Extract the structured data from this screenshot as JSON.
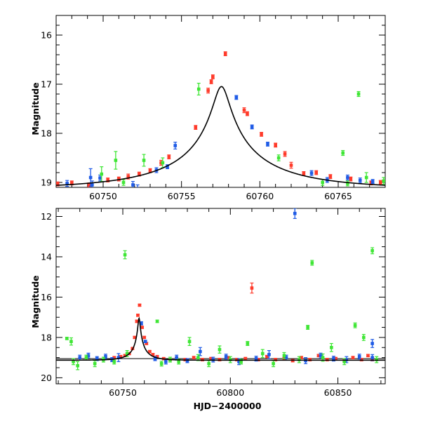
{
  "chart_data": [
    {
      "type": "scatter",
      "panel": "top",
      "title": "",
      "xlabel": "",
      "ylabel": "Magnitude",
      "xlim": [
        60747,
        60768
      ],
      "ylim": [
        19.1,
        15.6
      ],
      "y_inverted": true,
      "xticks": [
        60750,
        60755,
        60760,
        60765
      ],
      "yticks": [
        16,
        17,
        18,
        19
      ],
      "grid": false,
      "legend": "none",
      "model": {
        "name": "",
        "t0": 60757.55,
        "u0": 0.06,
        "tE": 8.0,
        "fs": 0.37,
        "base_mag": 19.13,
        "color": "#000000"
      },
      "series": [
        {
          "color": "#ff3a2a",
          "points": [
            [
              60747.1,
              19.03,
              0.04
            ],
            [
              60748.0,
              19.01,
              0.04
            ],
            [
              60749.1,
              19.05,
              0.04
            ],
            [
              60750.3,
              18.95,
              0.04
            ],
            [
              60751.0,
              18.93,
              0.04
            ],
            [
              60751.6,
              18.88,
              0.05
            ],
            [
              60752.3,
              18.83,
              0.04
            ],
            [
              60753.0,
              18.76,
              0.04
            ],
            [
              60753.7,
              18.6,
              0.05
            ],
            [
              60754.2,
              18.48,
              0.04
            ],
            [
              60755.9,
              17.88,
              0.04
            ],
            [
              60756.7,
              17.13,
              0.05
            ],
            [
              60756.9,
              16.95,
              0.04
            ],
            [
              60757.0,
              16.85,
              0.04
            ],
            [
              60757.8,
              16.38,
              0.04
            ],
            [
              60759.0,
              17.53,
              0.05
            ],
            [
              60759.2,
              17.6,
              0.04
            ],
            [
              60760.1,
              18.02,
              0.04
            ],
            [
              60761.0,
              18.24,
              0.04
            ],
            [
              60761.6,
              18.42,
              0.05
            ],
            [
              60762.0,
              18.65,
              0.06
            ],
            [
              60762.8,
              18.82,
              0.04
            ],
            [
              60763.6,
              18.8,
              0.04
            ],
            [
              60764.5,
              18.88,
              0.04
            ],
            [
              60765.8,
              18.93,
              0.04
            ],
            [
              60767.1,
              19.01,
              0.04
            ],
            [
              60767.7,
              19.0,
              0.04
            ]
          ]
        },
        {
          "color": "#1f5be6",
          "points": [
            [
              60747.7,
              19.02,
              0.06
            ],
            [
              60749.2,
              18.9,
              0.18
            ],
            [
              60749.3,
              19.05,
              0.08
            ],
            [
              60749.8,
              18.91,
              0.06
            ],
            [
              60751.9,
              19.05,
              0.07
            ],
            [
              60752.2,
              19.13,
              0.08
            ],
            [
              60753.4,
              18.75,
              0.05
            ],
            [
              60754.1,
              18.68,
              0.04
            ],
            [
              60754.6,
              18.25,
              0.07
            ],
            [
              60758.5,
              17.27,
              0.04
            ],
            [
              60759.5,
              17.87,
              0.04
            ],
            [
              60760.5,
              18.22,
              0.04
            ],
            [
              60763.3,
              18.81,
              0.05
            ],
            [
              60764.3,
              18.95,
              0.05
            ],
            [
              60765.1,
              19.18,
              0.07
            ],
            [
              60765.6,
              18.9,
              0.05
            ],
            [
              60766.4,
              18.96,
              0.05
            ],
            [
              60767.2,
              18.98,
              0.04
            ]
          ]
        },
        {
          "color": "#3fe635",
          "points": [
            [
              60749.9,
              18.83,
              0.15
            ],
            [
              60750.8,
              18.55,
              0.18
            ],
            [
              60751.3,
              19.0,
              0.06
            ],
            [
              60752.6,
              18.55,
              0.12
            ],
            [
              60753.8,
              18.6,
              0.1
            ],
            [
              60756.1,
              17.1,
              0.12
            ],
            [
              60761.2,
              18.5,
              0.06
            ],
            [
              60764.0,
              19.0,
              0.06
            ],
            [
              60765.3,
              18.4,
              0.05
            ],
            [
              60765.6,
              19.02,
              0.05
            ],
            [
              60766.3,
              17.2,
              0.05
            ],
            [
              60766.8,
              18.9,
              0.1
            ],
            [
              60767.9,
              18.97,
              0.07
            ]
          ]
        }
      ]
    },
    {
      "type": "scatter",
      "panel": "bottom",
      "title": "",
      "xlabel": "HJD−2400000",
      "ylabel": "Magnitude",
      "xlim": [
        60719,
        60872
      ],
      "ylim": [
        20.3,
        11.6
      ],
      "y_inverted": true,
      "xticks": [
        60750,
        60800,
        60850
      ],
      "yticks": [
        12,
        14,
        16,
        18,
        20
      ],
      "grid": false,
      "legend": "none",
      "baseline_mag": 19.05,
      "model": {
        "name": "",
        "t0": 60757.55,
        "u0": 0.06,
        "tE": 8.0,
        "fs": 0.37,
        "base_mag": 19.13,
        "color": "#000000"
      },
      "series": [
        {
          "color": "#ff3a2a",
          "points": [
            [
              60746,
              19.0,
              0.05
            ],
            [
              60749,
              18.95,
              0.05
            ],
            [
              60751,
              18.9,
              0.05
            ],
            [
              60753,
              18.8,
              0.05
            ],
            [
              60754.5,
              18.55,
              0.05
            ],
            [
              60755.5,
              18.0,
              0.05
            ],
            [
              60756.5,
              17.2,
              0.06
            ],
            [
              60757.0,
              16.9,
              0.05
            ],
            [
              60757.8,
              16.4,
              0.05
            ],
            [
              60759,
              17.5,
              0.05
            ],
            [
              60760,
              18.0,
              0.05
            ],
            [
              60761,
              18.3,
              0.05
            ],
            [
              60762.5,
              18.7,
              0.05
            ],
            [
              60764,
              18.85,
              0.05
            ],
            [
              60766,
              18.95,
              0.05
            ],
            [
              60769,
              19.05,
              0.05
            ],
            [
              60772,
              19.1,
              0.05
            ],
            [
              60775,
              19.05,
              0.06
            ],
            [
              60779,
              19.1,
              0.06
            ],
            [
              60783,
              19.0,
              0.06
            ],
            [
              60787,
              19.1,
              0.06
            ],
            [
              60791,
              19.05,
              0.06
            ],
            [
              60795,
              19.1,
              0.06
            ],
            [
              60799,
              19.0,
              0.06
            ],
            [
              60803,
              19.1,
              0.06
            ],
            [
              60807,
              19.05,
              0.06
            ],
            [
              60810,
              15.55,
              0.25
            ],
            [
              60813,
              19.1,
              0.06
            ],
            [
              60817,
              18.95,
              0.06
            ],
            [
              60821,
              19.1,
              0.06
            ],
            [
              60825,
              19.05,
              0.06
            ],
            [
              60829,
              19.15,
              0.06
            ],
            [
              60833,
              19.0,
              0.06
            ],
            [
              60837,
              19.1,
              0.06
            ],
            [
              60841,
              18.9,
              0.06
            ],
            [
              60845,
              19.1,
              0.06
            ],
            [
              60849,
              19.05,
              0.06
            ],
            [
              60853,
              19.15,
              0.06
            ],
            [
              60857,
              19.0,
              0.06
            ],
            [
              60861,
              19.1,
              0.06
            ],
            [
              60864,
              18.9,
              0.06
            ],
            [
              60866,
              19.1,
              0.06
            ]
          ]
        },
        {
          "color": "#1f5be6",
          "points": [
            [
              60730,
              19.0,
              0.12
            ],
            [
              60734,
              18.9,
              0.12
            ],
            [
              60738,
              19.05,
              0.1
            ],
            [
              60742,
              18.95,
              0.12
            ],
            [
              60745,
              19.1,
              0.1
            ],
            [
              60748,
              19.0,
              0.2
            ],
            [
              60758.6,
              17.3,
              0.08
            ],
            [
              60760.5,
              18.2,
              0.06
            ],
            [
              60765,
              19.05,
              0.1
            ],
            [
              60770,
              19.2,
              0.12
            ],
            [
              60775,
              19.0,
              0.12
            ],
            [
              60780,
              19.15,
              0.1
            ],
            [
              60786,
              18.7,
              0.2
            ],
            [
              60792,
              19.1,
              0.12
            ],
            [
              60798,
              18.95,
              0.12
            ],
            [
              60804,
              19.2,
              0.15
            ],
            [
              60812,
              19.05,
              0.12
            ],
            [
              60818,
              18.85,
              0.2
            ],
            [
              60826,
              19.0,
              0.12
            ],
            [
              60830,
              11.85,
              0.25
            ],
            [
              60835,
              19.15,
              0.15
            ],
            [
              60842,
              18.9,
              0.12
            ],
            [
              60848,
              19.05,
              0.12
            ],
            [
              60854,
              19.1,
              0.15
            ],
            [
              60860,
              18.95,
              0.12
            ],
            [
              60866,
              18.3,
              0.2
            ],
            [
              60866,
              19.0,
              0.15
            ]
          ]
        },
        {
          "color": "#3fe635",
          "points": [
            [
              60724,
              18.05,
              0.06
            ],
            [
              60726,
              18.2,
              0.18
            ],
            [
              60727,
              19.2,
              0.15
            ],
            [
              60729,
              19.4,
              0.2
            ],
            [
              60733,
              19.0,
              0.12
            ],
            [
              60737,
              19.3,
              0.15
            ],
            [
              60741,
              19.1,
              0.12
            ],
            [
              60746,
              19.2,
              0.12
            ],
            [
              60751,
              13.9,
              0.2
            ],
            [
              60752,
              18.8,
              0.15
            ],
            [
              60766,
              17.2,
              0.06
            ],
            [
              60768,
              19.3,
              0.12
            ],
            [
              60772,
              19.1,
              0.12
            ],
            [
              60776,
              19.2,
              0.12
            ],
            [
              60781,
              18.2,
              0.2
            ],
            [
              60785,
              19.0,
              0.15
            ],
            [
              60790,
              19.3,
              0.15
            ],
            [
              60795,
              18.6,
              0.18
            ],
            [
              60800,
              19.1,
              0.15
            ],
            [
              60805,
              19.2,
              0.12
            ],
            [
              60808,
              18.3,
              0.1
            ],
            [
              60815,
              18.8,
              0.2
            ],
            [
              60820,
              19.3,
              0.15
            ],
            [
              60825,
              18.9,
              0.15
            ],
            [
              60832,
              19.1,
              0.15
            ],
            [
              60836,
              17.5,
              0.1
            ],
            [
              60838,
              14.3,
              0.12
            ],
            [
              60843,
              19.0,
              0.18
            ],
            [
              60847,
              18.5,
              0.2
            ],
            [
              60853,
              19.2,
              0.15
            ],
            [
              60858,
              17.4,
              0.12
            ],
            [
              60862,
              18.0,
              0.15
            ],
            [
              60866,
              13.7,
              0.15
            ],
            [
              60868,
              19.1,
              0.15
            ]
          ]
        }
      ]
    }
  ]
}
